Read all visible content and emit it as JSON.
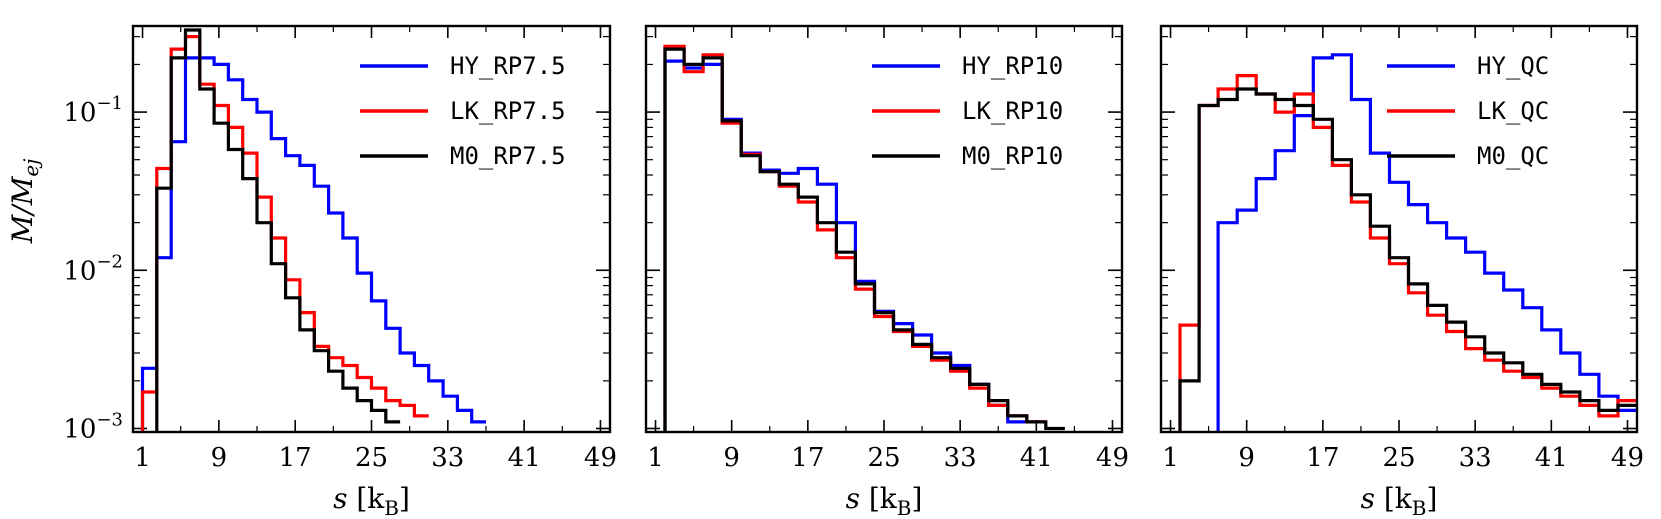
{
  "figure": {
    "ylabel": "M/Mej",
    "ylabel_parts": {
      "main": "M/M",
      "sub": "ej"
    },
    "xlabel_parts": {
      "main": "s [k",
      "sub": "B",
      "close": "]"
    }
  },
  "chart_data": [
    {
      "type": "line",
      "step": true,
      "title": "",
      "xlabel": "s [kB]",
      "ylabel": "M/Mej",
      "xlim": [
        0,
        50
      ],
      "ylim": [
        0.00095,
        0.35
      ],
      "yscale": "log",
      "xticks": [
        1,
        9,
        17,
        25,
        33,
        41,
        49
      ],
      "yticks": [
        0.001,
        0.01,
        0.1
      ],
      "ytick_labels": [
        "10",
        "10",
        "10"
      ],
      "ytick_exponents": [
        "−3",
        "−2",
        "−1"
      ],
      "legend_position": "top-right",
      "bin_edges": [
        1,
        2.5,
        4,
        5.5,
        7,
        8.5,
        10,
        11.5,
        13,
        14.5,
        16,
        17.5,
        19,
        20.5,
        22,
        23.5,
        25,
        26.5,
        28,
        29.5,
        31,
        32.5,
        34,
        35.5,
        37,
        38.5,
        40,
        41.5
      ],
      "series": [
        {
          "name": "HY_RP7.5",
          "color": "#0000ff",
          "values": [
            0.0024,
            0.012,
            0.065,
            0.22,
            0.22,
            0.2,
            0.16,
            0.12,
            0.1,
            0.068,
            0.053,
            0.046,
            0.034,
            0.023,
            0.016,
            0.0096,
            0.0064,
            0.0043,
            0.003,
            0.0025,
            0.002,
            0.0016,
            0.0013,
            0.0011,
            null,
            null,
            null
          ]
        },
        {
          "name": "LK_RP7.5",
          "color": "#ff0000",
          "values": [
            0.0017,
            0.044,
            0.25,
            0.3,
            0.15,
            0.11,
            0.08,
            0.055,
            0.029,
            0.016,
            0.0087,
            0.0054,
            0.0033,
            0.0028,
            0.0025,
            0.0021,
            0.0018,
            0.0015,
            0.0014,
            0.0012,
            null,
            null,
            null,
            null,
            null,
            null,
            null
          ]
        },
        {
          "name": "M0_RP7.5",
          "color": "#000000",
          "values": [
            null,
            0.033,
            0.22,
            0.33,
            0.14,
            0.085,
            0.058,
            0.038,
            0.02,
            0.011,
            0.0067,
            0.0042,
            0.0031,
            0.0023,
            0.0018,
            0.0015,
            0.0013,
            0.0011,
            null,
            null,
            null,
            null,
            null,
            null,
            null,
            null,
            null
          ]
        }
      ]
    },
    {
      "type": "line",
      "step": true,
      "title": "",
      "xlabel": "s [kB]",
      "ylabel": "",
      "xlim": [
        0,
        50
      ],
      "ylim": [
        0.00095,
        0.35
      ],
      "yscale": "log",
      "xticks": [
        1,
        9,
        17,
        25,
        33,
        41,
        49
      ],
      "yticks": [
        0.001,
        0.01,
        0.1
      ],
      "legend_position": "top-right",
      "bin_edges": [
        2,
        4,
        6,
        8,
        10,
        12,
        14,
        16,
        18,
        20,
        22,
        24,
        26,
        28,
        30,
        32,
        34,
        36,
        38,
        40,
        42,
        44
      ],
      "series": [
        {
          "name": "HY_RP10",
          "color": "#0000ff",
          "values": [
            0.21,
            0.19,
            0.2,
            0.09,
            0.055,
            0.043,
            0.041,
            0.044,
            0.035,
            0.02,
            0.0085,
            0.0055,
            0.0046,
            0.0039,
            0.003,
            0.0025,
            0.0019,
            0.0014,
            0.0011,
            null,
            null
          ]
        },
        {
          "name": "LK_RP10",
          "color": "#ff0000",
          "values": [
            0.26,
            0.18,
            0.23,
            0.085,
            0.054,
            0.042,
            0.034,
            0.027,
            0.018,
            0.012,
            0.0076,
            0.0051,
            0.0041,
            0.0033,
            0.0027,
            0.0023,
            0.0018,
            0.0014,
            0.0012,
            0.0011,
            null
          ]
        },
        {
          "name": "M0_RP10",
          "color": "#000000",
          "values": [
            0.25,
            0.2,
            0.22,
            0.088,
            0.053,
            0.042,
            0.035,
            0.029,
            0.02,
            0.013,
            0.0082,
            0.0054,
            0.0042,
            0.0034,
            0.0028,
            0.0024,
            0.0019,
            0.0015,
            0.0012,
            0.0011,
            0.001
          ]
        }
      ]
    },
    {
      "type": "line",
      "step": true,
      "title": "",
      "xlabel": "s [kB]",
      "ylabel": "",
      "xlim": [
        0,
        50
      ],
      "ylim": [
        0.00095,
        0.35
      ],
      "yscale": "log",
      "xticks": [
        1,
        9,
        17,
        25,
        33,
        41,
        49
      ],
      "yticks": [
        0.001,
        0.01,
        0.1
      ],
      "legend_position": "top-right",
      "bin_edges": [
        2,
        4,
        6,
        8,
        10,
        12,
        14,
        16,
        18,
        20,
        22,
        24,
        26,
        28,
        30,
        32,
        34,
        36,
        38,
        40,
        42,
        44,
        46,
        48,
        50
      ],
      "series": [
        {
          "name": "HY_QC",
          "color": "#0000ff",
          "values": [
            null,
            null,
            0.02,
            0.024,
            0.038,
            0.057,
            0.095,
            0.22,
            0.23,
            0.12,
            0.055,
            0.036,
            0.026,
            0.02,
            0.016,
            0.013,
            0.0096,
            0.0075,
            0.0058,
            0.0042,
            0.003,
            0.0022,
            0.0016,
            0.0013
          ]
        },
        {
          "name": "LK_QC",
          "color": "#ff0000",
          "values": [
            0.0045,
            0.11,
            0.14,
            0.17,
            0.13,
            0.1,
            0.13,
            0.08,
            0.046,
            0.027,
            0.016,
            0.011,
            0.0072,
            0.0052,
            0.0041,
            0.0032,
            0.0027,
            0.0023,
            0.0021,
            0.0018,
            0.0016,
            0.0014,
            0.0012,
            0.0015
          ]
        },
        {
          "name": "M0_QC",
          "color": "#000000",
          "values": [
            0.002,
            0.11,
            0.12,
            0.14,
            0.13,
            0.12,
            0.11,
            0.09,
            0.05,
            0.03,
            0.019,
            0.012,
            0.0082,
            0.006,
            0.0047,
            0.0038,
            0.003,
            0.0026,
            0.0022,
            0.0019,
            0.0017,
            0.0015,
            0.0013,
            0.0014
          ]
        }
      ]
    }
  ]
}
